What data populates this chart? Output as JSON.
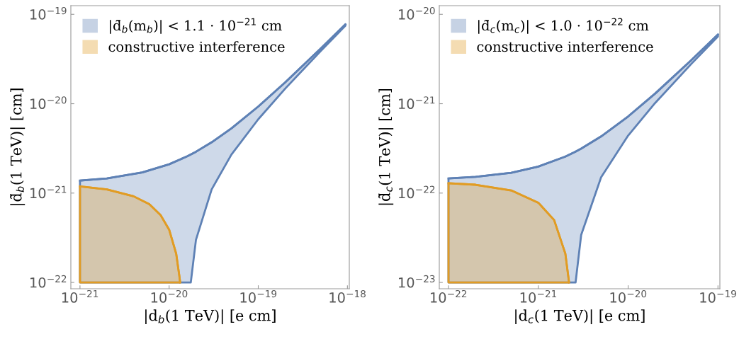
{
  "chart_data": [
    {
      "type": "line",
      "xlabel": "|d$_{b}$(1 TeV)| [e cm]",
      "ylabel": "|d̃$_{b}$(1 TeV)| [cm]",
      "log": "xy",
      "xlim": [
        7.9e-22,
        1.05e-18
      ],
      "ylim": [
        8.5e-23,
        1.25e-19
      ],
      "xticks": [
        {
          "value": 1e-21,
          "label": "10$^{−21}$"
        },
        {
          "value": 1e-20,
          "label": "10$^{−20}$"
        },
        {
          "value": 1e-19,
          "label": "10$^{−19}$"
        },
        {
          "value": 1e-18,
          "label": "10$^{−18}$"
        }
      ],
      "yticks": [
        {
          "value": 1e-22,
          "label": "10$^{−22}$"
        },
        {
          "value": 1e-21,
          "label": "10$^{−21}$"
        },
        {
          "value": 1e-20,
          "label": "10$^{−20}$"
        },
        {
          "value": 1e-19,
          "label": "10$^{−19}$"
        }
      ],
      "legend": "top left",
      "series": [
        {
          "name": "|d̃$_{b}$(m$_{b}$)| < 1.1 · 10$^{−21}$ cm",
          "color": "#5e81b5",
          "type": "line",
          "x": [
            1e-21,
            2e-21,
            5e-21,
            1e-20,
            1.6e-20,
            1.75e-20,
            2e-20,
            3e-20,
            5e-20,
            1e-19,
            2e-19,
            5e-19,
            9.5e-19
          ],
          "values": [
            1.38e-21,
            1.46e-21,
            1.7e-21,
            2.1e-21,
            2.58e-21,
            2.7e-21,
            2.9e-21,
            3.7e-21,
            5.3e-21,
            9.3e-21,
            1.73e-20,
            4.13e-20,
            7.73e-20
          ],
          "upper": [
            1.38e-21,
            1.46e-21,
            1.7e-21,
            2.1e-21,
            2.58e-21,
            2.7e-21,
            2.9e-21,
            3.7e-21,
            5.3e-21,
            9.3e-21,
            1.73e-20,
            4.13e-20,
            7.73e-20
          ],
          "lower": [
            1e-22,
            1e-22,
            1e-22,
            1e-22,
            1e-22,
            1e-22,
            3e-22,
            1.1e-21,
            2.7e-21,
            6.7e-21,
            1.47e-20,
            3.87e-20,
            7.47e-20
          ]
        },
        {
          "name": "constructive interference",
          "color": "#e19c24",
          "type": "line",
          "x": [
            1e-21,
            2e-21,
            4e-21,
            6e-21,
            8e-21,
            1e-20,
            1.2e-20,
            1.3e-20,
            1.33e-20
          ],
          "values": [
            1.19e-21,
            1.1e-21,
            9.2e-22,
            7.5e-22,
            5.7e-22,
            3.9e-22,
            2.1e-22,
            1.2e-22,
            1e-22
          ],
          "upper": [
            1.19e-21,
            1.1e-21,
            9.2e-22,
            7.5e-22,
            5.7e-22,
            3.9e-22,
            2.1e-22,
            1.2e-22,
            1e-22
          ],
          "lower": [
            1e-22,
            1e-22,
            1e-22,
            1e-22,
            1e-22,
            1e-22,
            1e-22,
            1e-22,
            1e-22
          ]
        }
      ]
    },
    {
      "type": "line",
      "xlabel": "|d$_{c}$(1 TeV)| [e cm]",
      "ylabel": "|d̃$_{c}$(1 TeV)| [cm]",
      "log": "xy",
      "xlim": [
        7.9e-23,
        1.05e-19
      ],
      "ylim": [
        8.5e-24,
        1.25e-20
      ],
      "xticks": [
        {
          "value": 1e-22,
          "label": "10$^{−22}$"
        },
        {
          "value": 1e-21,
          "label": "10$^{−21}$"
        },
        {
          "value": 1e-20,
          "label": "10$^{−20}$"
        },
        {
          "value": 1e-19,
          "label": "10$^{−19}$"
        }
      ],
      "yticks": [
        {
          "value": 1e-23,
          "label": "10$^{−23}$"
        },
        {
          "value": 1e-22,
          "label": "10$^{−22}$"
        },
        {
          "value": 1e-21,
          "label": "10$^{−21}$"
        },
        {
          "value": 1e-20,
          "label": "10$^{−20}$"
        }
      ],
      "legend": "top left",
      "series": [
        {
          "name": "|d̃$_{c}$(m$_{c}$)| < 1.0 · 10$^{−22}$ cm",
          "color": "#5e81b5",
          "type": "line",
          "x": [
            1e-22,
            2e-22,
            5e-22,
            1e-21,
            2e-21,
            2.6e-21,
            3e-21,
            5e-21,
            1e-20,
            2e-20,
            5e-20,
            1e-19
          ],
          "values": [
            1.46e-22,
            1.52e-22,
            1.69e-22,
            1.98e-22,
            2.56e-22,
            2.91e-22,
            3.14e-22,
            4.3e-22,
            7.2e-22,
            1.3e-21,
            3.04e-21,
            5.94e-21
          ],
          "upper": [
            1.46e-22,
            1.52e-22,
            1.69e-22,
            1.98e-22,
            2.56e-22,
            2.91e-22,
            3.14e-22,
            4.3e-22,
            7.2e-22,
            1.3e-21,
            3.04e-21,
            5.94e-21
          ],
          "lower": [
            1e-23,
            1e-23,
            1e-23,
            1e-23,
            1e-23,
            1e-23,
            3.4e-23,
            1.5e-22,
            4.4e-22,
            1.02e-21,
            2.76e-21,
            5.66e-21
          ]
        },
        {
          "name": "constructive interference",
          "color": "#e19c24",
          "type": "line",
          "x": [
            1e-22,
            2e-22,
            5e-22,
            1e-21,
            1.5e-21,
            2e-21,
            2.2e-21
          ],
          "values": [
            1.29e-22,
            1.24e-22,
            1.07e-22,
            7.8e-23,
            5e-23,
            2.1e-23,
            1e-23
          ],
          "upper": [
            1.29e-22,
            1.24e-22,
            1.07e-22,
            7.8e-23,
            5e-23,
            2.1e-23,
            1e-23
          ],
          "lower": [
            1e-23,
            1e-23,
            1e-23,
            1e-23,
            1e-23,
            1e-23,
            1e-23
          ]
        }
      ]
    }
  ]
}
